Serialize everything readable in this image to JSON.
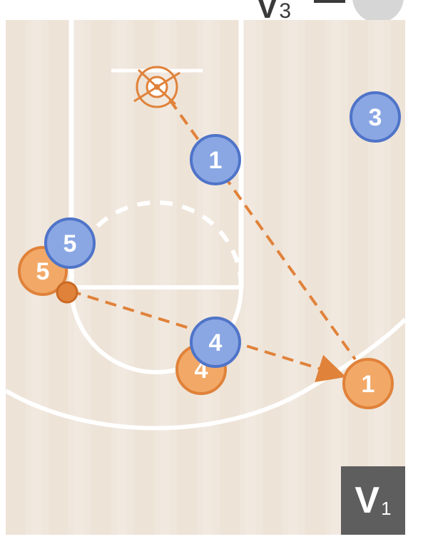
{
  "colors": {
    "offense": "#f2a968",
    "offense_stroke": "#e0823a",
    "defense": "#8aa7e4",
    "defense_stroke": "#4f74c8",
    "arrow": "#e0823a",
    "court": "#efe5da",
    "lines": "#ffffff",
    "chip_bg": "#5e5e5e"
  },
  "header": {
    "badge_letter": "V",
    "badge_number": "3"
  },
  "chip": {
    "letter": "V",
    "number": "1"
  },
  "players": {
    "offense": [
      {
        "label": "5"
      },
      {
        "label": "4"
      },
      {
        "label": "1"
      }
    ],
    "defense": [
      {
        "label": "1"
      },
      {
        "label": "3"
      },
      {
        "label": "5"
      },
      {
        "label": "4"
      }
    ]
  },
  "icons": {
    "basket": "basket-target-icon",
    "ball": "ball-icon",
    "arrow": "pass-arrow-icon"
  }
}
